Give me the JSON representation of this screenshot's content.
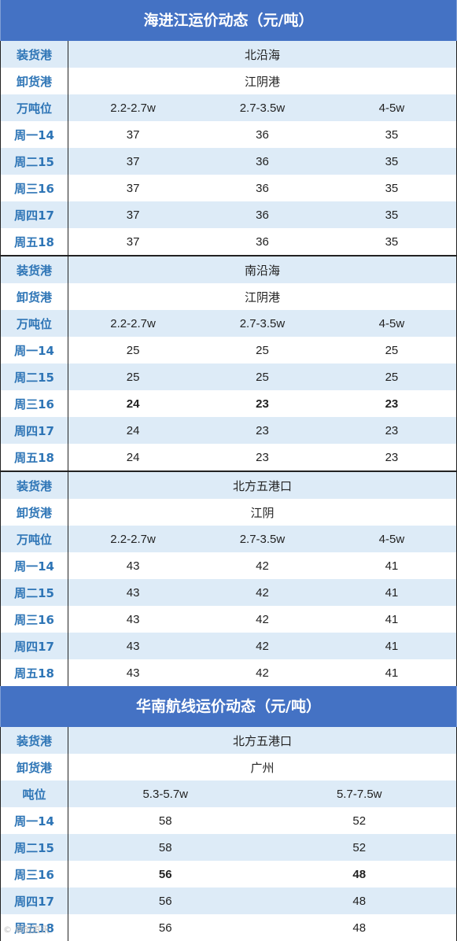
{
  "sections": [
    {
      "title": "海进江运价动态（元/吨）",
      "blocks": [
        {
          "rows": [
            {
              "label": "装货港",
              "cells": [
                "北沿海"
              ],
              "span": true
            },
            {
              "label": "卸货港",
              "cells": [
                "江阴港"
              ],
              "span": true
            },
            {
              "label": "万吨位",
              "cells": [
                "2.2-2.7w",
                "2.7-3.5w",
                "4-5w"
              ]
            },
            {
              "label": "周一14",
              "cells": [
                "37",
                "36",
                "35"
              ]
            },
            {
              "label": "周二15",
              "cells": [
                "37",
                "36",
                "35"
              ]
            },
            {
              "label": "周三16",
              "cells": [
                "37",
                "36",
                "35"
              ]
            },
            {
              "label": "周四17",
              "cells": [
                "37",
                "36",
                "35"
              ]
            },
            {
              "label": "周五18",
              "cells": [
                "37",
                "36",
                "35"
              ]
            }
          ]
        },
        {
          "rows": [
            {
              "label": "装货港",
              "cells": [
                "南沿海"
              ],
              "span": true
            },
            {
              "label": "卸货港",
              "cells": [
                "江阴港"
              ],
              "span": true
            },
            {
              "label": "万吨位",
              "cells": [
                "2.2-2.7w",
                "2.7-3.5w",
                "4-5w"
              ]
            },
            {
              "label": "周一14",
              "cells": [
                "25",
                "25",
                "25"
              ]
            },
            {
              "label": "周二15",
              "cells": [
                "25",
                "25",
                "25"
              ]
            },
            {
              "label": "周三16",
              "cells": [
                "24",
                "23",
                "23"
              ],
              "bold": true
            },
            {
              "label": "周四17",
              "cells": [
                "24",
                "23",
                "23"
              ]
            },
            {
              "label": "周五18",
              "cells": [
                "24",
                "23",
                "23"
              ]
            }
          ]
        },
        {
          "rows": [
            {
              "label": "装货港",
              "cells": [
                "北方五港口"
              ],
              "span": true
            },
            {
              "label": "卸货港",
              "cells": [
                "江阴"
              ],
              "span": true
            },
            {
              "label": "万吨位",
              "cells": [
                "2.2-2.7w",
                "2.7-3.5w",
                "4-5w"
              ]
            },
            {
              "label": "周一14",
              "cells": [
                "43",
                "42",
                "41"
              ]
            },
            {
              "label": "周二15",
              "cells": [
                "43",
                "42",
                "41"
              ]
            },
            {
              "label": "周三16",
              "cells": [
                "43",
                "42",
                "41"
              ]
            },
            {
              "label": "周四17",
              "cells": [
                "43",
                "42",
                "41"
              ]
            },
            {
              "label": "周五18",
              "cells": [
                "43",
                "42",
                "41"
              ]
            }
          ]
        }
      ]
    },
    {
      "title": "华南航线运价动态（元/吨）",
      "blocks": [
        {
          "rows": [
            {
              "label": "装货港",
              "cells": [
                "北方五港口"
              ],
              "span": true
            },
            {
              "label": "卸货港",
              "cells": [
                "广州"
              ],
              "span": true
            },
            {
              "label": "吨位",
              "cells": [
                "5.3-5.7w",
                "5.7-7.5w"
              ]
            },
            {
              "label": "周一14",
              "cells": [
                "58",
                "52"
              ]
            },
            {
              "label": "周二15",
              "cells": [
                "58",
                "52"
              ]
            },
            {
              "label": "周三16",
              "cells": [
                "56",
                "48"
              ],
              "bold": true
            },
            {
              "label": "周四17",
              "cells": [
                "56",
                "48"
              ]
            },
            {
              "label": "周五18",
              "cells": [
                "56",
                "48"
              ]
            }
          ]
        }
      ]
    }
  ],
  "watermark": "© 卓创资讯"
}
